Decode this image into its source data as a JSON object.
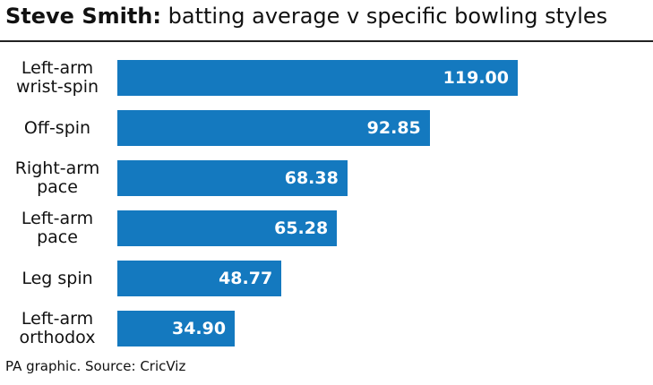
{
  "chart_data": {
    "type": "bar",
    "orientation": "horizontal",
    "title": "Steve Smith:",
    "subtitle": "batting average v specific bowling styles",
    "categories": [
      "Left-arm wrist-spin",
      "Off-spin",
      "Right-arm pace",
      "Left-arm pace",
      "Leg spin",
      "Left-arm orthodox"
    ],
    "values": [
      119.0,
      92.85,
      68.38,
      65.28,
      48.77,
      34.9
    ],
    "value_labels": [
      "119.00",
      "92.85",
      "68.38",
      "65.28",
      "48.77",
      "34.90"
    ],
    "color": "#1479bf",
    "source": "PA graphic. Source: CricViz"
  }
}
